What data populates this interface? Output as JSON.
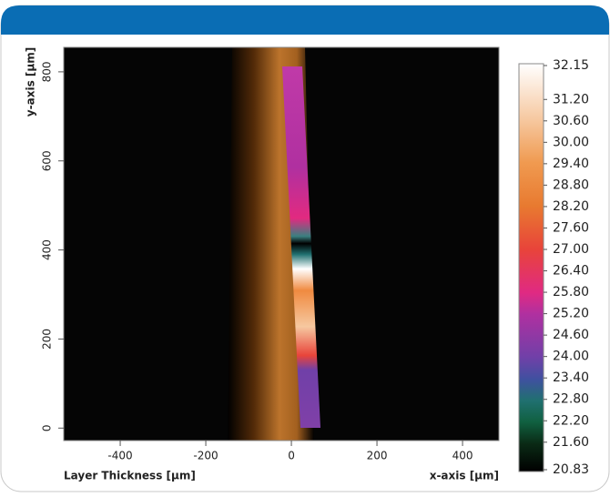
{
  "chart_data": {
    "type": "image",
    "xlabel": "x-axis [µm]",
    "ylabel": "y-axis [µm]",
    "footer_label": "Layer Thickness [µm]",
    "xlim": [
      -532,
      485
    ],
    "xticks": [
      -400,
      -200,
      0,
      200,
      400
    ],
    "ylim": [
      -28,
      855
    ],
    "yticks": [
      0,
      200,
      400,
      600,
      800
    ],
    "colorbar": {
      "lim": [
        20.83,
        32.15
      ],
      "ticks": [
        {
          "value": 32.15,
          "label": "32.15"
        },
        {
          "value": 31.2,
          "label": "31.20"
        },
        {
          "value": 30.6,
          "label": "30.60"
        },
        {
          "value": 30,
          "label": "30.00"
        },
        {
          "value": 29.4,
          "label": "29.40"
        },
        {
          "value": 28.8,
          "label": "28.80"
        },
        {
          "value": 28.2,
          "label": "28.20"
        },
        {
          "value": 27.6,
          "label": "27.60"
        },
        {
          "value": 27,
          "label": "27.00"
        },
        {
          "value": 26.4,
          "label": "26.40"
        },
        {
          "value": 25.8,
          "label": "25.80"
        },
        {
          "value": 25.2,
          "label": "25.20"
        },
        {
          "value": 24.6,
          "label": "24.60"
        },
        {
          "value": 24,
          "label": "24.00"
        },
        {
          "value": 23.4,
          "label": "23.40"
        },
        {
          "value": 22.8,
          "label": "22.80"
        },
        {
          "value": 22.2,
          "label": "22.20"
        },
        {
          "value": 21.6,
          "label": "21.60"
        },
        {
          "value": 20.83,
          "label": "20.83"
        }
      ],
      "colormap": [
        {
          "value": 32.15,
          "color": "#ffffff"
        },
        {
          "value": 30.6,
          "color": "#f6c8a0"
        },
        {
          "value": 29.4,
          "color": "#f09a50"
        },
        {
          "value": 28.2,
          "color": "#e87a30"
        },
        {
          "value": 27,
          "color": "#e8443a"
        },
        {
          "value": 25.8,
          "color": "#e02a82"
        },
        {
          "value": 25.2,
          "color": "#b030a0"
        },
        {
          "value": 24,
          "color": "#7040a8"
        },
        {
          "value": 23.4,
          "color": "#4050a0"
        },
        {
          "value": 22.8,
          "color": "#207070"
        },
        {
          "value": 22.2,
          "color": "#106040"
        },
        {
          "value": 21.6,
          "color": "#0a2a15"
        },
        {
          "value": 20.83,
          "color": "#000000"
        }
      ]
    }
  }
}
